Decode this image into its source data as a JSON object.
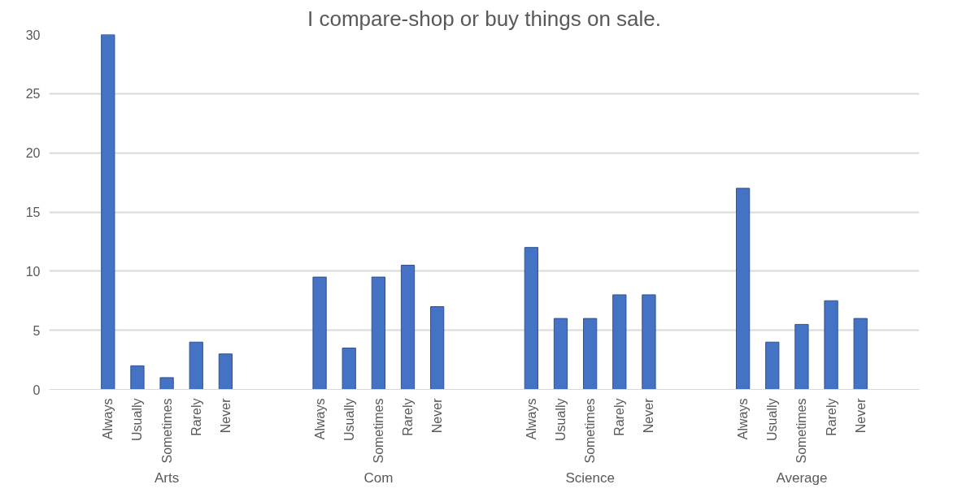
{
  "chart_data": {
    "type": "bar",
    "title": "I compare-shop or buy things on sale.",
    "categories": [
      "Always",
      "Usually",
      "Sometimes",
      "Rarely",
      "Never",
      "Always",
      "Usually",
      "Sometimes",
      "Rarely",
      "Never",
      "Always",
      "Usually",
      "Sometimes",
      "Rarely",
      "Never",
      "Always",
      "Usually",
      "Sometimes",
      "Rarely",
      "Never"
    ],
    "values": [
      30,
      2,
      1,
      4,
      3,
      9.5,
      3.5,
      9.5,
      10.5,
      7,
      12,
      6,
      6,
      8,
      8,
      17,
      4,
      5.5,
      7.5,
      6
    ],
    "color": "#4472c4",
    "annotations": [
      "Arts",
      "Com",
      "Science",
      "Average"
    ],
    "ylim": [
      0,
      30
    ],
    "yticks": [
      0,
      5,
      10,
      15,
      20,
      25,
      30
    ],
    "grid": "y"
  }
}
